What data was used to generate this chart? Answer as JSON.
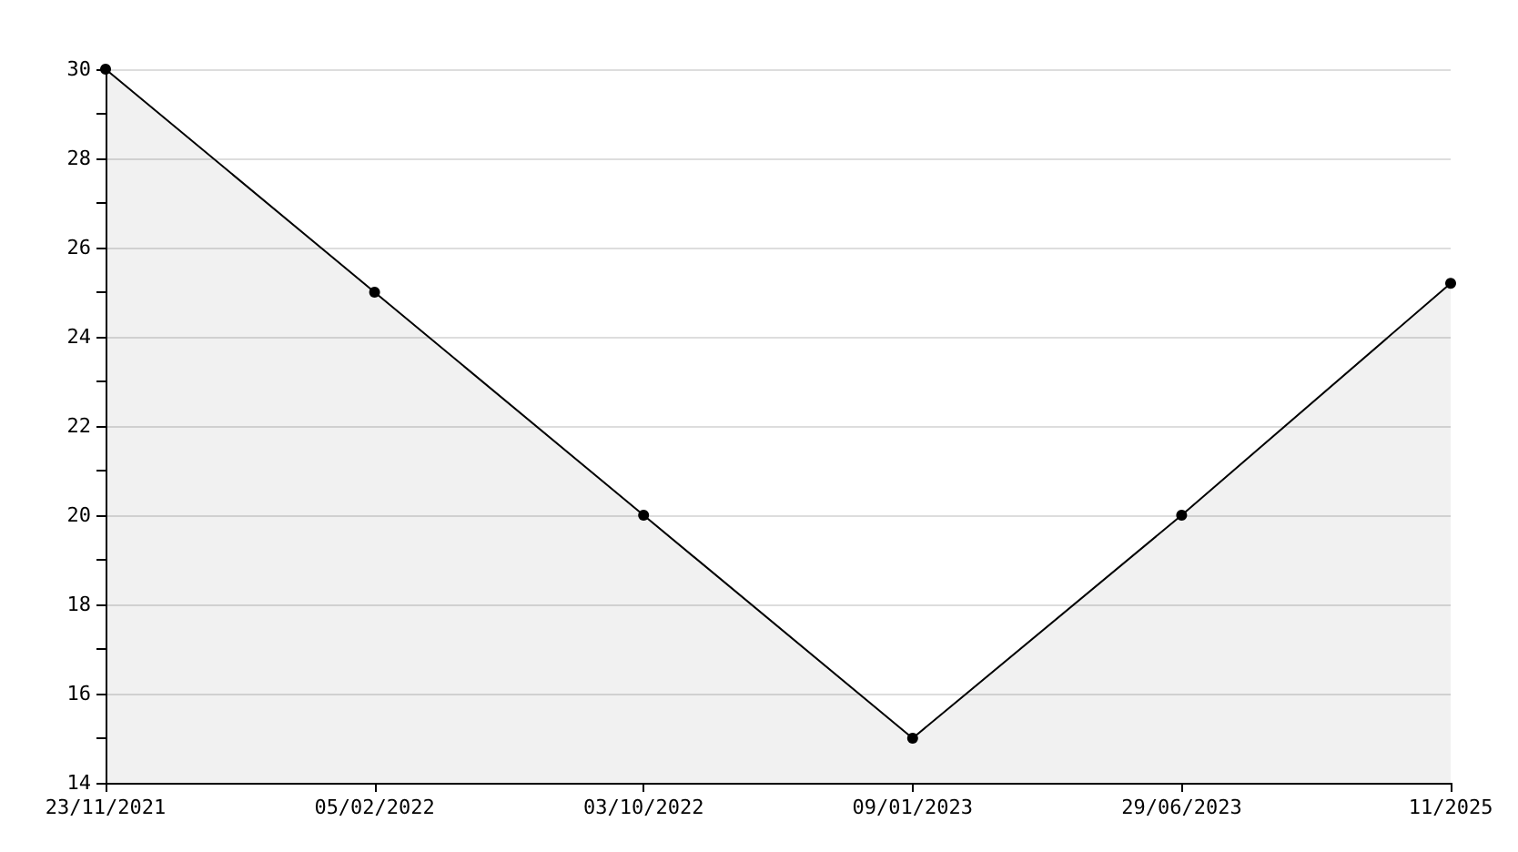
{
  "chart_data": {
    "type": "area",
    "categories": [
      "23/11/2021",
      "05/02/2022",
      "03/10/2022",
      "09/01/2023",
      "29/06/2023",
      "11/2025"
    ],
    "series": [
      {
        "color": "#000000",
        "values": [
          30,
          25,
          20,
          15,
          20,
          25.2
        ]
      }
    ],
    "ylim": [
      14,
      30
    ],
    "yticks": [
      14,
      {
        "value": 15,
        "label": null
      },
      16,
      {
        "value": 17,
        "label": null
      },
      18,
      {
        "value": 19,
        "label": null
      },
      20,
      {
        "value": 21,
        "label": null
      },
      22,
      {
        "value": 23,
        "label": null
      },
      24,
      {
        "value": 25,
        "label": null
      },
      26,
      {
        "value": 27,
        "label": null
      },
      28,
      {
        "value": 29,
        "label": null
      },
      30
    ],
    "grid": "y",
    "marker": "circle",
    "line_style": "solid"
  }
}
